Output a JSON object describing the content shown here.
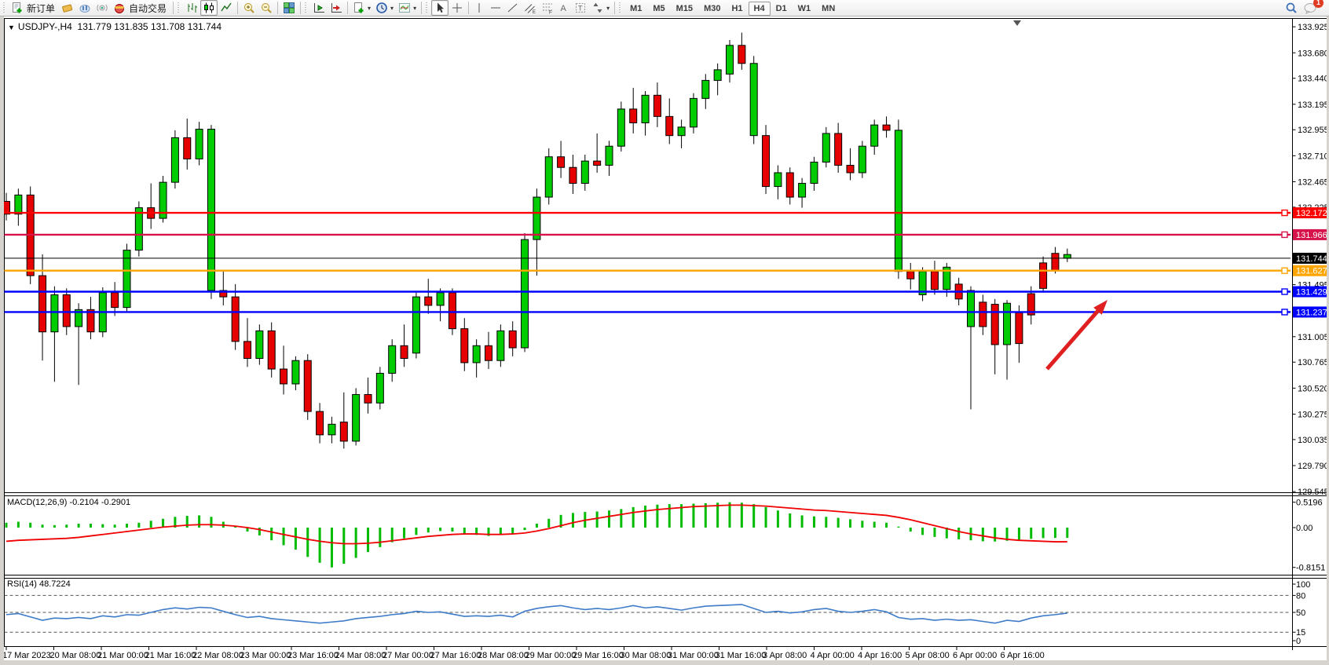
{
  "toolbar": {
    "new_order": "新订单",
    "auto_trading": "自动交易",
    "timeframes": [
      "M1",
      "M5",
      "M15",
      "M30",
      "H1",
      "H4",
      "D1",
      "W1",
      "MN"
    ],
    "active_timeframe": "H4",
    "badge_count": "1"
  },
  "chart": {
    "title": "USDJPY-,H4",
    "ohlc_display": "131.779 131.835 131.708 131.744"
  },
  "macd": {
    "display": "MACD(12,26,9) -0.2104 -0.2901"
  },
  "rsi": {
    "display": "RSI(14) 48.7224"
  },
  "chart_data": [
    {
      "type": "candlestick",
      "title": "USDJPY-,H4",
      "ohlc_display": "131.779 131.835 131.708 131.744",
      "ylim": [
        129.54,
        134.0
      ],
      "y_ticks": [
        "133.925",
        "133.680",
        "133.440",
        "133.195",
        "132.955",
        "132.710",
        "132.465",
        "132.225",
        "131.980",
        "131.740",
        "131.495",
        "131.250",
        "131.005",
        "130.765",
        "130.520",
        "130.275",
        "130.035",
        "129.790",
        "129.545"
      ],
      "x_labels": [
        "17 Mar 2023",
        "20 Mar 08:00",
        "21 Mar 00:00",
        "21 Mar 16:00",
        "22 Mar 08:00",
        "23 Mar 00:00",
        "23 Mar 16:00",
        "24 Mar 08:00",
        "27 Mar 00:00",
        "27 Mar 16:00",
        "28 Mar 08:00",
        "29 Mar 00:00",
        "29 Mar 16:00",
        "30 Mar 08:00",
        "31 Mar 00:00",
        "31 Mar 16:00",
        "3 Apr 08:00",
        "4 Apr 00:00",
        "4 Apr 16:00",
        "5 Apr 08:00",
        "6 Apr 00:00",
        "6 Apr 16:00"
      ],
      "hlines": [
        {
          "price": 132.172,
          "label": "132.172",
          "color": "#FF0000",
          "width": 2.4,
          "marker": true
        },
        {
          "price": 131.966,
          "label": "131.966",
          "color": "#D6134A",
          "width": 2.4,
          "marker": true
        },
        {
          "price": 131.744,
          "label": "131.744",
          "color": "#000000",
          "width": 1,
          "marker": false
        },
        {
          "price": 131.627,
          "label": "131.627",
          "color": "#FFA500",
          "width": 2.4,
          "marker": true
        },
        {
          "price": 131.429,
          "label": "131.429",
          "color": "#0000FF",
          "width": 2.4,
          "marker": true
        },
        {
          "price": 131.237,
          "label": "131.237",
          "color": "#0000FF",
          "width": 2.4,
          "marker": true
        }
      ],
      "annotation_arrow": {
        "from": [
          1333,
          470
        ],
        "to": [
          1410,
          382
        ],
        "color": "#E02020"
      },
      "colors": {
        "bull": "#00CC00",
        "bear": "#E60000",
        "wick": "#000000"
      },
      "candles": [
        [
          132.28,
          132.36,
          132.1,
          132.16,
          -1
        ],
        [
          132.16,
          132.4,
          132.05,
          132.34,
          1
        ],
        [
          132.34,
          132.42,
          131.5,
          131.58,
          -1
        ],
        [
          131.58,
          131.78,
          130.78,
          131.05,
          -1
        ],
        [
          131.05,
          131.48,
          130.58,
          131.4,
          1
        ],
        [
          131.4,
          131.46,
          131.02,
          131.1,
          -1
        ],
        [
          131.1,
          131.32,
          130.55,
          131.26,
          1
        ],
        [
          131.26,
          131.38,
          130.98,
          131.05,
          -1
        ],
        [
          131.05,
          131.47,
          131.0,
          131.42,
          1
        ],
        [
          131.42,
          131.52,
          131.2,
          131.28,
          -1
        ],
        [
          131.28,
          131.88,
          131.24,
          131.82,
          1
        ],
        [
          131.82,
          132.28,
          131.76,
          132.22,
          1
        ],
        [
          132.22,
          132.45,
          132.02,
          132.12,
          -1
        ],
        [
          132.12,
          132.52,
          132.08,
          132.46,
          1
        ],
        [
          132.46,
          132.95,
          132.4,
          132.88,
          1
        ],
        [
          132.88,
          133.06,
          132.58,
          132.68,
          -1
        ],
        [
          132.68,
          133.03,
          132.62,
          132.96,
          1
        ],
        [
          132.96,
          133.0,
          131.36,
          131.44,
          1
        ],
        [
          131.44,
          131.62,
          131.3,
          131.38,
          -1
        ],
        [
          131.38,
          131.5,
          130.88,
          130.96,
          -1
        ],
        [
          130.96,
          131.18,
          130.72,
          130.8,
          -1
        ],
        [
          130.8,
          131.12,
          130.74,
          131.06,
          1
        ],
        [
          131.06,
          131.14,
          130.62,
          130.7,
          -1
        ],
        [
          130.7,
          130.92,
          130.46,
          130.56,
          -1
        ],
        [
          130.56,
          130.82,
          130.5,
          130.78,
          1
        ],
        [
          130.78,
          130.84,
          130.22,
          130.3,
          -1
        ],
        [
          130.3,
          130.38,
          130.0,
          130.08,
          -1
        ],
        [
          130.08,
          130.25,
          130.0,
          130.18,
          1
        ],
        [
          130.2,
          130.48,
          129.95,
          130.02,
          -1
        ],
        [
          130.02,
          130.52,
          129.98,
          130.46,
          1
        ],
        [
          130.46,
          130.62,
          130.28,
          130.38,
          -1
        ],
        [
          130.38,
          130.72,
          130.32,
          130.66,
          1
        ],
        [
          130.66,
          130.98,
          130.58,
          130.92,
          1
        ],
        [
          130.92,
          131.12,
          130.72,
          130.8,
          -1
        ],
        [
          130.85,
          131.42,
          130.8,
          131.38,
          1
        ],
        [
          131.38,
          131.55,
          131.22,
          131.3,
          -1
        ],
        [
          131.3,
          131.46,
          131.15,
          131.42,
          1
        ],
        [
          131.42,
          131.46,
          131.02,
          131.08,
          -1
        ],
        [
          131.08,
          131.18,
          130.68,
          130.76,
          -1
        ],
        [
          130.76,
          130.98,
          130.62,
          130.92,
          1
        ],
        [
          130.92,
          131.05,
          130.7,
          130.78,
          -1
        ],
        [
          130.78,
          131.12,
          130.72,
          131.06,
          1
        ],
        [
          131.06,
          131.15,
          130.82,
          130.9,
          -1
        ],
        [
          130.9,
          131.98,
          130.86,
          131.92,
          1
        ],
        [
          131.92,
          132.4,
          131.58,
          132.32,
          1
        ],
        [
          132.32,
          132.78,
          132.25,
          132.7,
          1
        ],
        [
          132.7,
          132.85,
          132.5,
          132.6,
          -1
        ],
        [
          132.6,
          132.72,
          132.35,
          132.45,
          -1
        ],
        [
          132.45,
          132.72,
          132.38,
          132.66,
          1
        ],
        [
          132.66,
          132.92,
          132.55,
          132.62,
          -1
        ],
        [
          132.62,
          132.85,
          132.52,
          132.8,
          1
        ],
        [
          132.8,
          133.22,
          132.75,
          133.15,
          1
        ],
        [
          133.15,
          133.35,
          132.92,
          133.02,
          -1
        ],
        [
          133.02,
          133.32,
          132.9,
          133.28,
          1
        ],
        [
          133.28,
          133.4,
          132.98,
          133.08,
          -1
        ],
        [
          133.08,
          133.25,
          132.82,
          132.9,
          -1
        ],
        [
          132.9,
          133.05,
          132.78,
          132.98,
          1
        ],
        [
          132.98,
          133.3,
          132.92,
          133.25,
          1
        ],
        [
          133.25,
          133.48,
          133.15,
          133.42,
          1
        ],
        [
          133.42,
          133.58,
          133.28,
          133.52,
          1
        ],
        [
          133.48,
          133.8,
          133.4,
          133.75,
          1
        ],
        [
          133.75,
          133.87,
          133.52,
          133.58,
          -1
        ],
        [
          133.58,
          133.65,
          132.82,
          132.9,
          1
        ],
        [
          132.9,
          133.0,
          132.35,
          132.42,
          -1
        ],
        [
          132.42,
          132.62,
          132.3,
          132.55,
          1
        ],
        [
          132.55,
          132.6,
          132.25,
          132.32,
          -1
        ],
        [
          132.32,
          132.5,
          132.22,
          132.45,
          1
        ],
        [
          132.45,
          132.7,
          132.38,
          132.65,
          1
        ],
        [
          132.65,
          132.98,
          132.6,
          132.92,
          1
        ],
        [
          132.92,
          133.02,
          132.55,
          132.62,
          -1
        ],
        [
          132.62,
          132.78,
          132.48,
          132.55,
          -1
        ],
        [
          132.55,
          132.85,
          132.5,
          132.8,
          1
        ],
        [
          132.8,
          133.05,
          132.72,
          133.0,
          1
        ],
        [
          133.0,
          133.08,
          132.88,
          132.95,
          -1
        ],
        [
          132.95,
          133.05,
          131.55,
          131.62,
          1
        ],
        [
          131.62,
          131.7,
          131.45,
          131.55,
          -1
        ],
        [
          131.4,
          131.66,
          131.34,
          131.62,
          1
        ],
        [
          131.62,
          131.72,
          131.4,
          131.45,
          -1
        ],
        [
          131.45,
          131.7,
          131.38,
          131.66,
          1
        ],
        [
          131.5,
          131.56,
          131.3,
          131.36,
          -1
        ],
        [
          131.1,
          131.48,
          130.32,
          131.44,
          1
        ],
        [
          131.33,
          131.4,
          131.02,
          131.1,
          -1
        ],
        [
          131.31,
          131.36,
          130.65,
          130.93,
          -1
        ],
        [
          130.93,
          131.35,
          130.6,
          131.32,
          1
        ],
        [
          131.23,
          131.3,
          130.76,
          130.94,
          -1
        ],
        [
          131.41,
          131.48,
          131.12,
          131.21,
          -1
        ],
        [
          131.7,
          131.76,
          131.42,
          131.46,
          -1
        ],
        [
          131.79,
          131.85,
          131.6,
          131.63,
          -1
        ],
        [
          131.779,
          131.835,
          131.708,
          131.744,
          1
        ]
      ]
    },
    {
      "type": "bar",
      "name": "MACD",
      "params": [
        12,
        26,
        9
      ],
      "display": "MACD(12,26,9) -0.2104 -0.2901",
      "values": [
        -0.2104,
        -0.2901
      ],
      "y_ticks": [
        "0.5196",
        "0.00",
        "-0.8151"
      ],
      "ylim": [
        -0.98,
        0.65
      ],
      "colors": {
        "histogram": "#00BB00",
        "signal": "#F00000"
      },
      "histogram": [
        0.1,
        0.12,
        0.1,
        0.06,
        0.05,
        0.06,
        0.08,
        0.08,
        0.07,
        0.06,
        0.08,
        0.1,
        0.14,
        0.18,
        0.22,
        0.24,
        0.25,
        0.22,
        0.12,
        0.02,
        -0.08,
        -0.16,
        -0.26,
        -0.36,
        -0.45,
        -0.6,
        -0.72,
        -0.8151,
        -0.74,
        -0.62,
        -0.5,
        -0.4,
        -0.3,
        -0.22,
        -0.15,
        -0.1,
        -0.07,
        -0.08,
        -0.12,
        -0.15,
        -0.17,
        -0.15,
        -0.12,
        -0.05,
        0.08,
        0.18,
        0.26,
        0.3,
        0.32,
        0.33,
        0.35,
        0.38,
        0.42,
        0.45,
        0.47,
        0.48,
        0.48,
        0.49,
        0.5,
        0.51,
        0.5196,
        0.51,
        0.48,
        0.42,
        0.35,
        0.29,
        0.25,
        0.23,
        0.22,
        0.2,
        0.17,
        0.14,
        0.12,
        0.1,
        0.02,
        -0.08,
        -0.15,
        -0.19,
        -0.22,
        -0.24,
        -0.26,
        -0.28,
        -0.285,
        -0.27,
        -0.25,
        -0.23,
        -0.215,
        -0.21,
        -0.2104
      ],
      "signal": [
        -0.28,
        -0.26,
        -0.25,
        -0.24,
        -0.23,
        -0.22,
        -0.2,
        -0.17,
        -0.14,
        -0.11,
        -0.08,
        -0.05,
        -0.02,
        0.01,
        0.03,
        0.05,
        0.06,
        0.06,
        0.05,
        0.03,
        0.0,
        -0.04,
        -0.09,
        -0.14,
        -0.19,
        -0.24,
        -0.28,
        -0.31,
        -0.33,
        -0.33,
        -0.32,
        -0.3,
        -0.27,
        -0.24,
        -0.21,
        -0.18,
        -0.16,
        -0.14,
        -0.13,
        -0.13,
        -0.14,
        -0.14,
        -0.13,
        -0.11,
        -0.07,
        -0.02,
        0.04,
        0.1,
        0.15,
        0.19,
        0.23,
        0.27,
        0.31,
        0.34,
        0.37,
        0.39,
        0.41,
        0.43,
        0.44,
        0.45,
        0.46,
        0.46,
        0.45,
        0.44,
        0.42,
        0.4,
        0.38,
        0.36,
        0.35,
        0.33,
        0.31,
        0.29,
        0.27,
        0.25,
        0.21,
        0.16,
        0.1,
        0.04,
        -0.02,
        -0.08,
        -0.13,
        -0.17,
        -0.21,
        -0.24,
        -0.26,
        -0.27,
        -0.28,
        -0.29,
        -0.2901
      ]
    },
    {
      "type": "line",
      "name": "RSI",
      "params": [
        14
      ],
      "display": "RSI(14) 48.7224",
      "value": 48.7224,
      "y_ticks": [
        "100",
        "80",
        "50",
        "15",
        "0"
      ],
      "levels": [
        80,
        50,
        15
      ],
      "ylim": [
        0,
        100
      ],
      "color": "#3E7BC8",
      "values": [
        46,
        48,
        42,
        36,
        40,
        39,
        41,
        39,
        44,
        42,
        46,
        45,
        50,
        55,
        58,
        56,
        59,
        58,
        52,
        46,
        41,
        43,
        39,
        37,
        35,
        33,
        31,
        33,
        35,
        39,
        41,
        43,
        46,
        48,
        52,
        50,
        51,
        47,
        43,
        44,
        43,
        45,
        42,
        52,
        57,
        60,
        62,
        58,
        55,
        57,
        55,
        58,
        62,
        58,
        60,
        57,
        54,
        58,
        61,
        62,
        63,
        64,
        57,
        50,
        52,
        49,
        51,
        55,
        57,
        52,
        50,
        52,
        55,
        51,
        41,
        38,
        39,
        36,
        38,
        36,
        37,
        34,
        31,
        36,
        34,
        40,
        44,
        46,
        48.72
      ]
    }
  ]
}
